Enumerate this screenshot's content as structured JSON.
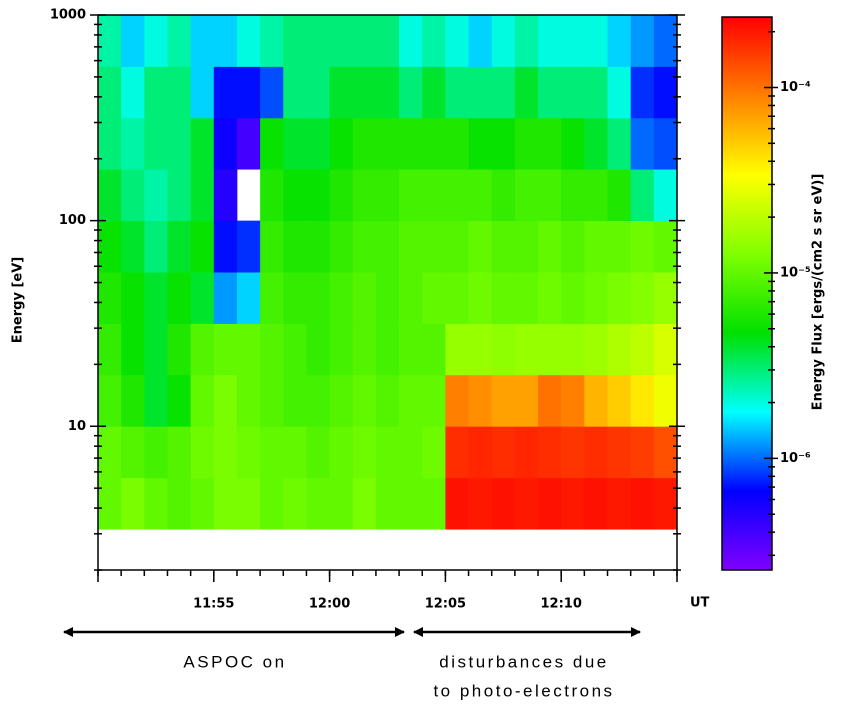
{
  "chart_data": {
    "type": "heatmap",
    "y_label": "Energy [eV]",
    "x_label": "UT",
    "colorbar_label": "Energy Flux [ergs/(cm2 s sr eV)]",
    "xlim": [
      710,
      735
    ],
    "xticks": [
      {
        "value": 715,
        "label": "11:55"
      },
      {
        "value": 720,
        "label": "12:00"
      },
      {
        "value": 725,
        "label": "12:05"
      },
      {
        "value": 730,
        "label": "12:10"
      }
    ],
    "ylim": [
      2,
      1000
    ],
    "log_y": true,
    "yticks": [
      10,
      100,
      1000
    ],
    "clim": [
      2.5e-07,
      0.00024
    ],
    "log_c": true,
    "cticks": [
      {
        "value": 1e-06,
        "label": "10⁻⁶"
      },
      {
        "value": 1e-05,
        "label": "10⁻⁵"
      },
      {
        "value": 0.0001,
        "label": "10⁻⁴"
      }
    ],
    "colormap": [
      "#8000ff",
      "#0000ff",
      "#00ffff",
      "#00e000",
      "#80ff00",
      "#ffff00",
      "#ff8000",
      "#ff0000"
    ],
    "x_bins": [
      710,
      711,
      712,
      713,
      714,
      715,
      716,
      717,
      718,
      719,
      720,
      721,
      722,
      723,
      724,
      725,
      726,
      727,
      728,
      729,
      730,
      731,
      732,
      733,
      734,
      735
    ],
    "y_bins": [
      3.16,
      5.62,
      10,
      17.8,
      31.6,
      56.2,
      100,
      178,
      316,
      562,
      1000
    ],
    "z": [
      [
        1e-05,
        1.2e-05,
        1e-05,
        9e-06,
        1e-05,
        1.2e-05,
        1.2e-05,
        1e-05,
        1.1e-05,
        1e-05,
        1e-05,
        1.2e-05,
        1e-05,
        1e-05,
        1e-05,
        0.00021,
        0.0002,
        0.00021,
        0.0002,
        0.00021,
        0.0002,
        0.00021,
        0.0002,
        0.00021,
        0.0002
      ],
      [
        1e-05,
        9e-06,
        8e-06,
        9e-06,
        1.1e-05,
        1.2e-05,
        1.1e-05,
        1e-05,
        1e-05,
        9e-06,
        1e-05,
        1.1e-05,
        1e-05,
        1e-05,
        1.1e-05,
        0.00017,
        0.00018,
        0.00017,
        0.00018,
        0.00017,
        0.00016,
        0.00017,
        0.00016,
        0.00015,
        0.00013
      ],
      [
        8e-06,
        6e-06,
        4e-06,
        5e-06,
        1e-05,
        1.2e-05,
        1e-05,
        9e-06,
        8e-06,
        8e-06,
        9e-06,
        1e-05,
        9e-06,
        1e-05,
        1e-05,
        9e-05,
        8e-05,
        7e-05,
        7e-05,
        0.0001,
        9e-05,
        6e-05,
        5e-05,
        4e-05,
        3e-05
      ],
      [
        7e-06,
        5e-06,
        4e-06,
        6e-06,
        9e-06,
        1e-05,
        1e-05,
        9e-06,
        8e-06,
        7e-06,
        8e-06,
        9e-06,
        8e-06,
        9e-06,
        9e-06,
        1.5e-05,
        1.5e-05,
        1.4e-05,
        1.5e-05,
        1.5e-05,
        1.5e-05,
        1.6e-05,
        1.8e-05,
        2e-05,
        2.5e-05
      ],
      [
        6e-06,
        5e-06,
        4e-06,
        5e-06,
        4e-06,
        1.2e-06,
        1.5e-06,
        8e-06,
        7e-06,
        7e-06,
        8e-06,
        9e-06,
        8e-06,
        9e-06,
        1e-05,
        1e-05,
        1.1e-05,
        1e-05,
        1e-05,
        1.1e-05,
        1e-05,
        1.1e-05,
        1.2e-05,
        1.3e-05,
        1.5e-05
      ],
      [
        5e-06,
        4e-06,
        3e-06,
        4e-06,
        5e-06,
        7e-07,
        8e-07,
        7e-06,
        6e-06,
        6e-06,
        7e-06,
        8e-06,
        8e-06,
        9e-06,
        9e-06,
        9e-06,
        1e-05,
        9e-06,
        9e-06,
        1e-05,
        9e-06,
        1e-05,
        1e-05,
        1.1e-05,
        1e-05
      ],
      [
        4e-06,
        3e-06,
        2.5e-06,
        3e-06,
        4e-06,
        5e-07,
        null,
        6e-06,
        5e-06,
        5e-06,
        6e-06,
        7e-06,
        7e-06,
        8e-06,
        8e-06,
        8e-06,
        8e-06,
        7e-06,
        8e-06,
        8e-06,
        7e-06,
        7e-06,
        6e-06,
        3e-06,
        2e-06
      ],
      [
        3e-06,
        2.5e-06,
        3e-06,
        3e-06,
        4e-06,
        6e-07,
        4e-07,
        5e-06,
        4e-06,
        4e-06,
        5e-06,
        6e-06,
        6e-06,
        6e-06,
        6e-06,
        6e-06,
        5e-06,
        5e-06,
        6e-06,
        6e-06,
        5e-06,
        4e-06,
        3e-06,
        1e-06,
        9e-07
      ],
      [
        3e-06,
        2e-06,
        3e-06,
        3e-06,
        1.5e-06,
        7e-07,
        7e-07,
        9e-07,
        3e-06,
        3e-06,
        4e-06,
        4e-06,
        4e-06,
        3e-06,
        4e-06,
        3e-06,
        3e-06,
        3e-06,
        4e-06,
        3e-06,
        3e-06,
        3e-06,
        2e-06,
        8e-07,
        7e-07
      ],
      [
        2.5e-06,
        1.5e-06,
        2e-06,
        2.5e-06,
        1.5e-06,
        1.5e-06,
        2e-06,
        2.5e-06,
        3e-06,
        3e-06,
        3e-06,
        3e-06,
        3e-06,
        2e-06,
        2.5e-06,
        2e-06,
        1.5e-06,
        2e-06,
        2.5e-06,
        2e-06,
        2e-06,
        2e-06,
        1.5e-06,
        1.2e-06,
        1e-06
      ]
    ],
    "annotations": [
      "ASPOC on",
      "disturbances due",
      "to photo-electrons"
    ]
  }
}
